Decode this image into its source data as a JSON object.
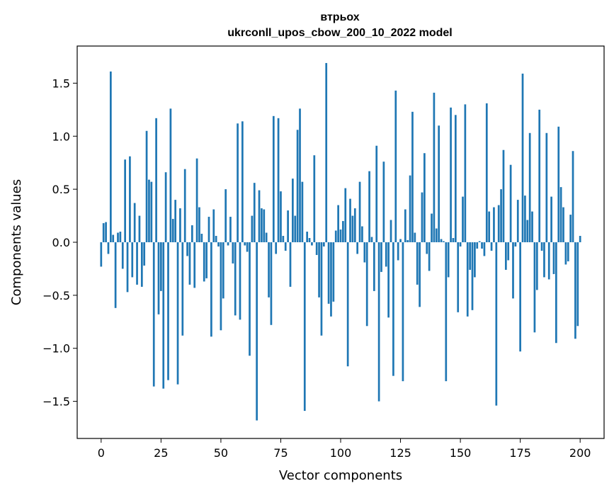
{
  "chart_data": {
    "type": "bar",
    "title": "втрьох",
    "subtitle": "ukrconll_upos_cbow_200_10_2022 model",
    "xlabel": "Vector components",
    "ylabel": "Components values",
    "xlim": [
      -10,
      210
    ],
    "ylim": [
      -1.85,
      1.85
    ],
    "xticks": [
      0,
      25,
      50,
      75,
      100,
      125,
      150,
      175,
      200
    ],
    "yticks": [
      -1.5,
      -1.0,
      -0.5,
      0.0,
      0.5,
      1.0,
      1.5
    ],
    "ytick_labels": [
      "−1.5",
      "−1.0",
      "−0.5",
      "0.0",
      "0.5",
      "1.0",
      "1.5"
    ],
    "bar_color": "#1f77b4",
    "grid": false,
    "values": [
      -0.23,
      0.18,
      0.19,
      -0.11,
      1.61,
      0.07,
      -0.62,
      0.09,
      0.1,
      -0.25,
      0.78,
      -0.47,
      0.81,
      -0.33,
      0.37,
      -0.4,
      0.25,
      -0.42,
      -0.22,
      1.05,
      0.59,
      0.57,
      -1.36,
      1.17,
      -0.68,
      -0.46,
      -1.38,
      0.66,
      -1.3,
      1.26,
      0.22,
      0.4,
      -1.34,
      0.32,
      -0.88,
      0.69,
      -0.13,
      -0.4,
      0.16,
      -0.43,
      0.79,
      0.33,
      0.08,
      -0.37,
      -0.34,
      0.24,
      -0.89,
      0.31,
      0.06,
      -0.04,
      -0.83,
      -0.53,
      0.5,
      -0.03,
      0.24,
      -0.2,
      -0.69,
      1.12,
      -0.73,
      1.14,
      -0.03,
      -0.09,
      -1.07,
      0.25,
      0.56,
      -1.68,
      0.49,
      0.32,
      0.31,
      0.09,
      -0.52,
      -0.78,
      1.19,
      -0.11,
      1.17,
      0.48,
      0.06,
      -0.08,
      0.3,
      -0.42,
      0.6,
      0.25,
      1.06,
      1.26,
      0.57,
      -1.59,
      0.1,
      0.04,
      -0.03,
      0.82,
      -0.12,
      -0.52,
      -0.88,
      -0.04,
      1.69,
      -0.58,
      -0.7,
      -0.56,
      0.11,
      0.35,
      0.12,
      0.2,
      0.51,
      -1.17,
      0.41,
      0.25,
      0.32,
      -0.11,
      0.57,
      0.15,
      -0.19,
      -0.79,
      0.67,
      0.05,
      -0.46,
      0.91,
      -1.5,
      -0.28,
      0.76,
      -0.23,
      -0.71,
      0.21,
      -1.26,
      1.43,
      -0.17,
      0.03,
      -1.31,
      0.31,
      0.02,
      0.63,
      1.23,
      0.09,
      -0.4,
      -0.61,
      0.47,
      0.84,
      -0.11,
      -0.27,
      0.27,
      1.41,
      0.13,
      1.1,
      0.03,
      0.01,
      -1.31,
      -0.33,
      1.27,
      0.04,
      1.2,
      -0.66,
      -0.04,
      0.43,
      1.3,
      -0.7,
      -0.26,
      -0.64,
      -0.33,
      -0.06,
      0.01,
      -0.06,
      -0.13,
      1.31,
      0.29,
      -0.08,
      0.33,
      -1.54,
      0.35,
      0.5,
      0.87,
      -0.26,
      -0.17,
      0.73,
      -0.53,
      -0.04,
      0.4,
      -1.03,
      1.59,
      0.44,
      0.21,
      1.03,
      0.29,
      -0.85,
      -0.45,
      1.25,
      -0.08,
      -0.33,
      1.03,
      -0.35,
      0.43,
      -0.3,
      -0.95,
      1.09,
      0.52,
      0.33,
      -0.21,
      -0.18,
      0.26,
      0.86,
      -0.91,
      -0.79,
      0.06
    ]
  }
}
